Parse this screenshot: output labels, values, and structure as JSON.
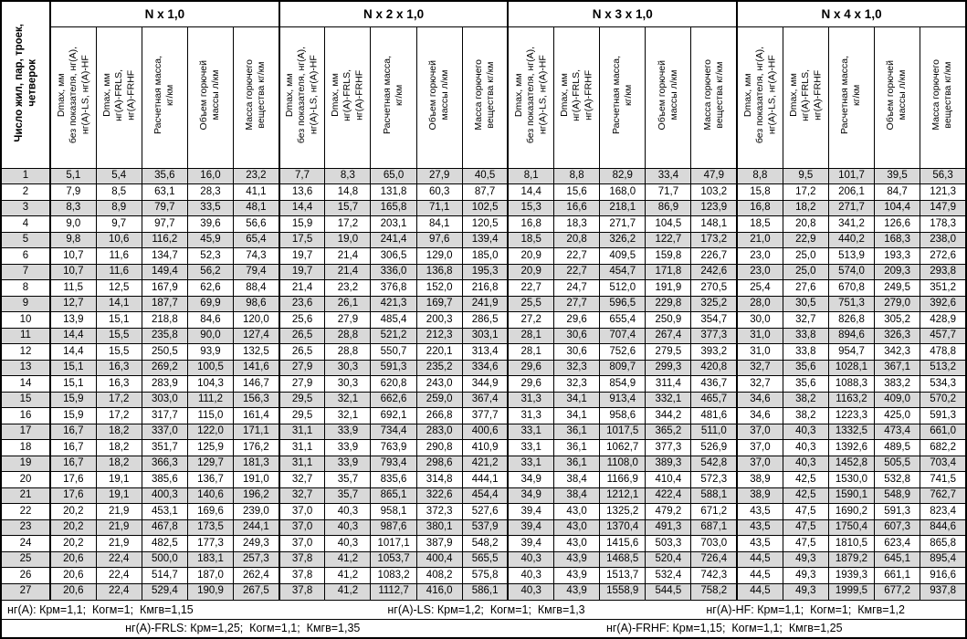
{
  "table": {
    "corner_header": "Число жил, пар, троек,\nчетверок",
    "groups": [
      {
        "label": "N x 1,0"
      },
      {
        "label": "N x 2 x 1,0"
      },
      {
        "label": "N x 3 x 1,0"
      },
      {
        "label": "N x 4 x 1,0"
      }
    ],
    "subheaders": [
      "Dmax, мм\nбез показателя, нг(А),\nнг(А)-LS, нг(А)-HF",
      "Dmax, мм\nнг(А)-FRLS,\nнг(А)-FRHF",
      "Расчетная масса,\nкг/км",
      "Объем горючей\nмассы л/км",
      "Масса горючего\nвещества кг/км"
    ],
    "rows": [
      [
        1,
        "5,1",
        "5,4",
        "35,6",
        "16,0",
        "23,2",
        "7,7",
        "8,3",
        "65,0",
        "27,9",
        "40,5",
        "8,1",
        "8,8",
        "82,9",
        "33,4",
        "47,9",
        "8,8",
        "9,5",
        "101,7",
        "39,5",
        "56,3"
      ],
      [
        2,
        "7,9",
        "8,5",
        "63,1",
        "28,3",
        "41,1",
        "13,6",
        "14,8",
        "131,8",
        "60,3",
        "87,7",
        "14,4",
        "15,6",
        "168,0",
        "71,7",
        "103,2",
        "15,8",
        "17,2",
        "206,1",
        "84,7",
        "121,3"
      ],
      [
        3,
        "8,3",
        "8,9",
        "79,7",
        "33,5",
        "48,1",
        "14,4",
        "15,7",
        "165,8",
        "71,1",
        "102,5",
        "15,3",
        "16,6",
        "218,1",
        "86,9",
        "123,9",
        "16,8",
        "18,2",
        "271,7",
        "104,4",
        "147,9"
      ],
      [
        4,
        "9,0",
        "9,7",
        "97,7",
        "39,6",
        "56,6",
        "15,9",
        "17,2",
        "203,1",
        "84,1",
        "120,5",
        "16,8",
        "18,3",
        "271,7",
        "104,5",
        "148,1",
        "18,5",
        "20,8",
        "341,2",
        "126,6",
        "178,3"
      ],
      [
        5,
        "9,8",
        "10,6",
        "116,2",
        "45,9",
        "65,4",
        "17,5",
        "19,0",
        "241,4",
        "97,6",
        "139,4",
        "18,5",
        "20,8",
        "326,2",
        "122,7",
        "173,2",
        "21,0",
        "22,9",
        "440,2",
        "168,3",
        "238,0"
      ],
      [
        6,
        "10,7",
        "11,6",
        "134,7",
        "52,3",
        "74,3",
        "19,7",
        "21,4",
        "306,5",
        "129,0",
        "185,0",
        "20,9",
        "22,7",
        "409,5",
        "159,8",
        "226,7",
        "23,0",
        "25,0",
        "513,9",
        "193,3",
        "272,6"
      ],
      [
        7,
        "10,7",
        "11,6",
        "149,4",
        "56,2",
        "79,4",
        "19,7",
        "21,4",
        "336,0",
        "136,8",
        "195,3",
        "20,9",
        "22,7",
        "454,7",
        "171,8",
        "242,6",
        "23,0",
        "25,0",
        "574,0",
        "209,3",
        "293,8"
      ],
      [
        8,
        "11,5",
        "12,5",
        "167,9",
        "62,6",
        "88,4",
        "21,4",
        "23,2",
        "376,8",
        "152,0",
        "216,8",
        "22,7",
        "24,7",
        "512,0",
        "191,9",
        "270,5",
        "25,4",
        "27,6",
        "670,8",
        "249,5",
        "351,2"
      ],
      [
        9,
        "12,7",
        "14,1",
        "187,7",
        "69,9",
        "98,6",
        "23,6",
        "26,1",
        "421,3",
        "169,7",
        "241,9",
        "25,5",
        "27,7",
        "596,5",
        "229,8",
        "325,2",
        "28,0",
        "30,5",
        "751,3",
        "279,0",
        "392,6"
      ],
      [
        10,
        "13,9",
        "15,1",
        "218,8",
        "84,6",
        "120,0",
        "25,6",
        "27,9",
        "485,4",
        "200,3",
        "286,5",
        "27,2",
        "29,6",
        "655,4",
        "250,9",
        "354,7",
        "30,0",
        "32,7",
        "826,8",
        "305,2",
        "428,9"
      ],
      [
        11,
        "14,4",
        "15,5",
        "235,8",
        "90,0",
        "127,4",
        "26,5",
        "28,8",
        "521,2",
        "212,3",
        "303,1",
        "28,1",
        "30,6",
        "707,4",
        "267,4",
        "377,3",
        "31,0",
        "33,8",
        "894,6",
        "326,3",
        "457,7"
      ],
      [
        12,
        "14,4",
        "15,5",
        "250,5",
        "93,9",
        "132,5",
        "26,5",
        "28,8",
        "550,7",
        "220,1",
        "313,4",
        "28,1",
        "30,6",
        "752,6",
        "279,5",
        "393,2",
        "31,0",
        "33,8",
        "954,7",
        "342,3",
        "478,8"
      ],
      [
        13,
        "15,1",
        "16,3",
        "269,2",
        "100,5",
        "141,6",
        "27,9",
        "30,3",
        "591,3",
        "235,2",
        "334,6",
        "29,6",
        "32,3",
        "809,7",
        "299,3",
        "420,8",
        "32,7",
        "35,6",
        "1028,1",
        "367,1",
        "513,2"
      ],
      [
        14,
        "15,1",
        "16,3",
        "283,9",
        "104,3",
        "146,7",
        "27,9",
        "30,3",
        "620,8",
        "243,0",
        "344,9",
        "29,6",
        "32,3",
        "854,9",
        "311,4",
        "436,7",
        "32,7",
        "35,6",
        "1088,3",
        "383,2",
        "534,3"
      ],
      [
        15,
        "15,9",
        "17,2",
        "303,0",
        "111,2",
        "156,3",
        "29,5",
        "32,1",
        "662,6",
        "259,0",
        "367,4",
        "31,3",
        "34,1",
        "913,4",
        "332,1",
        "465,7",
        "34,6",
        "38,2",
        "1163,2",
        "409,0",
        "570,2"
      ],
      [
        16,
        "15,9",
        "17,2",
        "317,7",
        "115,0",
        "161,4",
        "29,5",
        "32,1",
        "692,1",
        "266,8",
        "377,7",
        "31,3",
        "34,1",
        "958,6",
        "344,2",
        "481,6",
        "34,6",
        "38,2",
        "1223,3",
        "425,0",
        "591,3"
      ],
      [
        17,
        "16,7",
        "18,2",
        "337,0",
        "122,0",
        "171,1",
        "31,1",
        "33,9",
        "734,4",
        "283,0",
        "400,6",
        "33,1",
        "36,1",
        "1017,5",
        "365,2",
        "511,0",
        "37,0",
        "40,3",
        "1332,5",
        "473,4",
        "661,0"
      ],
      [
        18,
        "16,7",
        "18,2",
        "351,7",
        "125,9",
        "176,2",
        "31,1",
        "33,9",
        "763,9",
        "290,8",
        "410,9",
        "33,1",
        "36,1",
        "1062,7",
        "377,3",
        "526,9",
        "37,0",
        "40,3",
        "1392,6",
        "489,5",
        "682,2"
      ],
      [
        19,
        "16,7",
        "18,2",
        "366,3",
        "129,7",
        "181,3",
        "31,1",
        "33,9",
        "793,4",
        "298,6",
        "421,2",
        "33,1",
        "36,1",
        "1108,0",
        "389,3",
        "542,8",
        "37,0",
        "40,3",
        "1452,8",
        "505,5",
        "703,4"
      ],
      [
        20,
        "17,6",
        "19,1",
        "385,6",
        "136,7",
        "191,0",
        "32,7",
        "35,7",
        "835,6",
        "314,8",
        "444,1",
        "34,9",
        "38,4",
        "1166,9",
        "410,4",
        "572,3",
        "38,9",
        "42,5",
        "1530,0",
        "532,8",
        "741,5"
      ],
      [
        21,
        "17,6",
        "19,1",
        "400,3",
        "140,6",
        "196,2",
        "32,7",
        "35,7",
        "865,1",
        "322,6",
        "454,4",
        "34,9",
        "38,4",
        "1212,1",
        "422,4",
        "588,1",
        "38,9",
        "42,5",
        "1590,1",
        "548,9",
        "762,7"
      ],
      [
        22,
        "20,2",
        "21,9",
        "453,1",
        "169,6",
        "239,0",
        "37,0",
        "40,3",
        "958,1",
        "372,3",
        "527,6",
        "39,4",
        "43,0",
        "1325,2",
        "479,2",
        "671,2",
        "43,5",
        "47,5",
        "1690,2",
        "591,3",
        "823,4"
      ],
      [
        23,
        "20,2",
        "21,9",
        "467,8",
        "173,5",
        "244,1",
        "37,0",
        "40,3",
        "987,6",
        "380,1",
        "537,9",
        "39,4",
        "43,0",
        "1370,4",
        "491,3",
        "687,1",
        "43,5",
        "47,5",
        "1750,4",
        "607,3",
        "844,6"
      ],
      [
        24,
        "20,2",
        "21,9",
        "482,5",
        "177,3",
        "249,3",
        "37,0",
        "40,3",
        "1017,1",
        "387,9",
        "548,2",
        "39,4",
        "43,0",
        "1415,6",
        "503,3",
        "703,0",
        "43,5",
        "47,5",
        "1810,5",
        "623,4",
        "865,8"
      ],
      [
        25,
        "20,6",
        "22,4",
        "500,0",
        "183,1",
        "257,3",
        "37,8",
        "41,2",
        "1053,7",
        "400,4",
        "565,5",
        "40,3",
        "43,9",
        "1468,5",
        "520,4",
        "726,4",
        "44,5",
        "49,3",
        "1879,2",
        "645,1",
        "895,4"
      ],
      [
        26,
        "20,6",
        "22,4",
        "514,7",
        "187,0",
        "262,4",
        "37,8",
        "41,2",
        "1083,2",
        "408,2",
        "575,8",
        "40,3",
        "43,9",
        "1513,7",
        "532,4",
        "742,3",
        "44,5",
        "49,3",
        "1939,3",
        "661,1",
        "916,6"
      ],
      [
        27,
        "20,6",
        "22,4",
        "529,4",
        "190,9",
        "267,5",
        "37,8",
        "41,2",
        "1112,7",
        "416,0",
        "586,1",
        "40,3",
        "43,9",
        "1558,9",
        "544,5",
        "758,2",
        "44,5",
        "49,3",
        "1999,5",
        "677,2",
        "937,8"
      ]
    ]
  },
  "footer": {
    "line1": [
      "нг(А): Крм=1,1;  Когм=1;  Кмгв=1,15",
      "нг(А)-LS: Крм=1,2;  Когм=1;  Кмгв=1,3",
      "нг(А)-HF: Крм=1,1;  Когм=1;  Кмгв=1,2"
    ],
    "line2": [
      "нг(А)-FRLS: Крм=1,25;  Когм=1,1;  Кмгв=1,35",
      "нг(А)-FRHF: Крм=1,15;  Когм=1,1;  Кмгв=1,25"
    ]
  },
  "colors": {
    "row_stripe": "#d9d9d9",
    "border": "#000000",
    "background": "#ffffff"
  }
}
